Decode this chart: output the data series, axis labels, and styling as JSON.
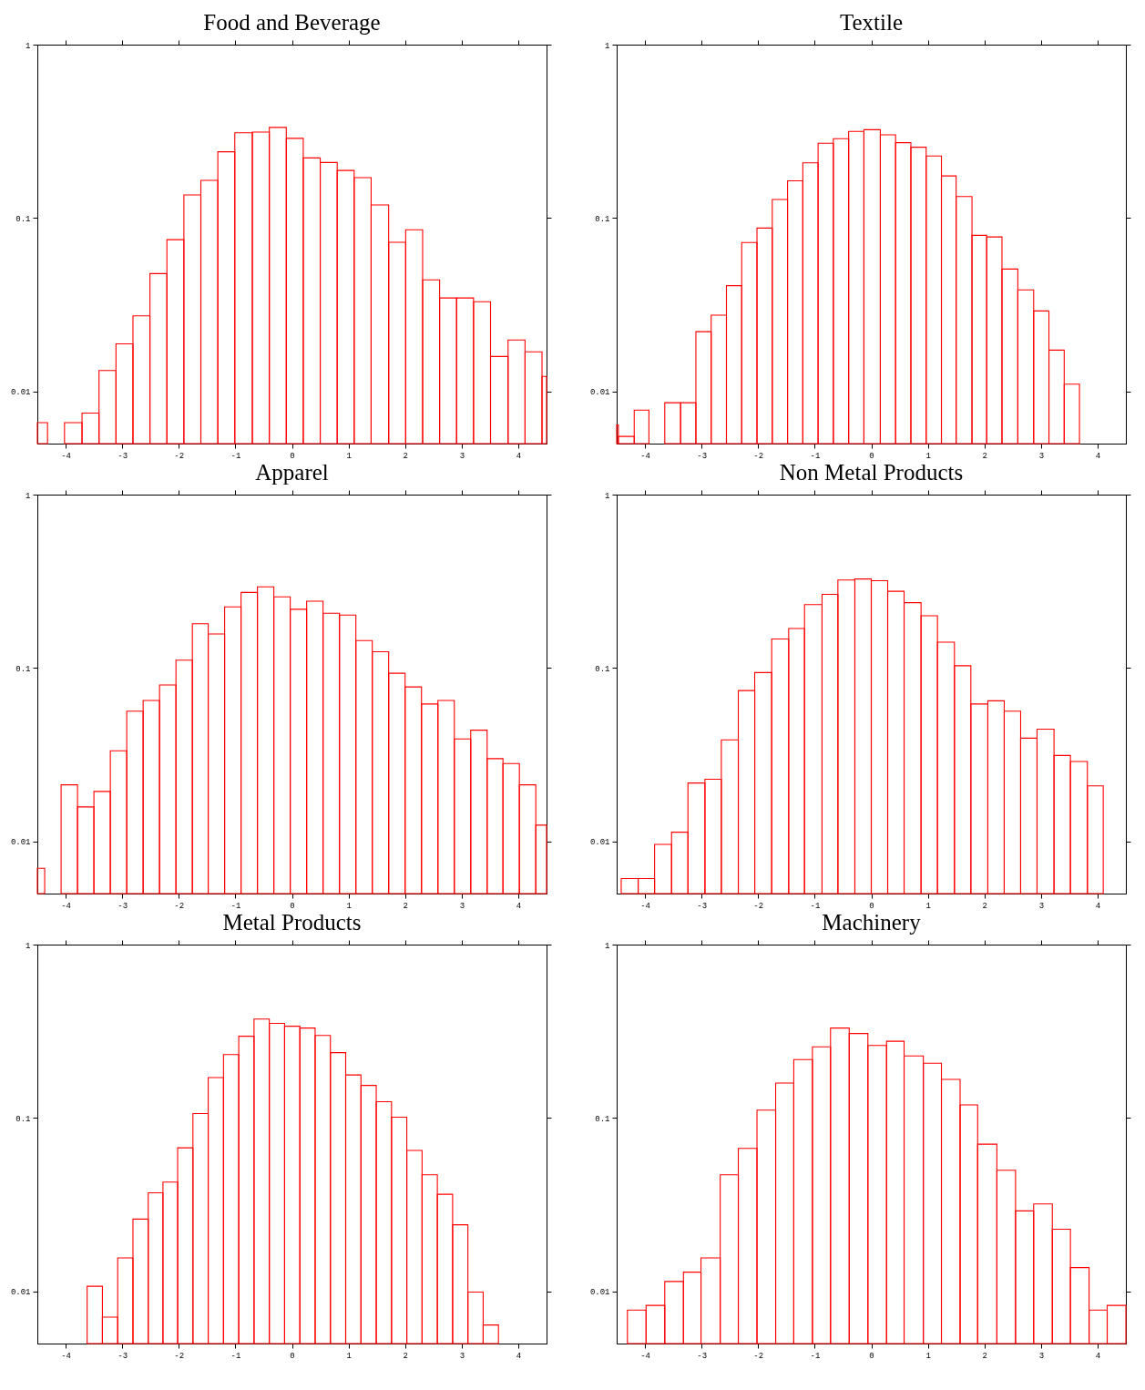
{
  "chart_data": [
    {
      "type": "histogram",
      "title": "Food and Beverage",
      "color": "#ff0000",
      "log": true,
      "xlim": [
        -4.5,
        4.5
      ],
      "xticks": [
        -4,
        -3,
        -2,
        -1,
        0,
        1,
        2,
        3,
        4
      ],
      "ylim": [
        0.005,
        1
      ],
      "yticks": [
        0.01,
        0.1,
        1
      ],
      "bins": [
        -4.5,
        -4.32,
        -4.02,
        -3.71,
        -3.41,
        -3.11,
        -2.81,
        -2.51,
        -2.21,
        -1.91,
        -1.61,
        -1.31,
        -1.01,
        -0.7,
        -0.4,
        -0.1,
        0.2,
        0.5,
        0.8,
        1.1,
        1.4,
        1.71,
        2.01,
        2.31,
        2.61,
        2.91,
        3.21,
        3.51,
        3.82,
        4.12,
        4.42,
        4.5
      ],
      "values": [
        0.0066,
        null,
        0.0066,
        0.0075,
        0.0132,
        0.0188,
        0.0273,
        0.0478,
        0.075,
        0.136,
        0.165,
        0.241,
        0.31,
        0.313,
        0.333,
        0.288,
        0.222,
        0.209,
        0.188,
        0.171,
        0.119,
        0.0724,
        0.0855,
        0.044,
        0.0346,
        0.0346,
        0.0329,
        0.0159,
        0.0198,
        0.0169,
        0.0122
      ]
    },
    {
      "type": "histogram",
      "title": "Textile",
      "color": "#ff0000",
      "log": true,
      "xlim": [
        -4.5,
        4.5
      ],
      "xticks": [
        -4,
        -3,
        -2,
        -1,
        0,
        1,
        2,
        3,
        4
      ],
      "ylim": [
        0.005,
        1
      ],
      "yticks": [
        0.01,
        0.1,
        1
      ],
      "bins": [
        -4.5,
        -4.47,
        -4.19,
        -3.93,
        -3.65,
        -3.37,
        -3.1,
        -2.83,
        -2.56,
        -2.29,
        -2.02,
        -1.75,
        -1.48,
        -1.21,
        -0.94,
        -0.67,
        -0.4,
        -0.13,
        0.16,
        0.43,
        0.7,
        0.97,
        1.24,
        1.5,
        1.78,
        2.04,
        2.31,
        2.59,
        2.87,
        3.14,
        3.41,
        3.68
      ],
      "values": [
        0.0064,
        0.0055,
        0.0078,
        null,
        0.0086,
        0.0086,
        0.0221,
        0.0275,
        0.0407,
        0.0722,
        0.0875,
        0.128,
        0.164,
        0.208,
        0.27,
        0.287,
        0.316,
        0.323,
        0.302,
        0.272,
        0.256,
        0.228,
        0.175,
        0.133,
        0.0794,
        0.0778,
        0.0508,
        0.0385,
        0.0291,
        0.0173,
        0.011
      ]
    },
    {
      "type": "histogram",
      "title": "Apparel",
      "color": "#ff0000",
      "log": true,
      "xlim": [
        -4.5,
        4.5
      ],
      "xticks": [
        -4,
        -3,
        -2,
        -1,
        0,
        1,
        2,
        3,
        4
      ],
      "ylim": [
        0.005,
        1
      ],
      "yticks": [
        0.01,
        0.1,
        1
      ],
      "bins": [
        -4.5,
        -4.37,
        -4.08,
        -3.79,
        -3.5,
        -3.21,
        -2.92,
        -2.63,
        -2.34,
        -2.05,
        -1.76,
        -1.48,
        -1.19,
        -0.9,
        -0.61,
        -0.32,
        -0.03,
        0.26,
        0.55,
        0.84,
        1.13,
        1.42,
        1.71,
        2.0,
        2.29,
        2.58,
        2.87,
        3.16,
        3.45,
        3.73,
        4.02,
        4.31,
        4.5
      ],
      "values": [
        0.007,
        null,
        0.0212,
        0.0158,
        0.0194,
        0.0333,
        0.0564,
        0.065,
        0.0798,
        0.111,
        0.18,
        0.157,
        0.225,
        0.273,
        0.294,
        0.257,
        0.218,
        0.243,
        0.207,
        0.202,
        0.144,
        0.124,
        0.0933,
        0.0778,
        0.062,
        0.065,
        0.039,
        0.0438,
        0.03,
        0.0281,
        0.0212,
        0.0124
      ]
    },
    {
      "type": "histogram",
      "title": "Non Metal Products",
      "color": "#ff0000",
      "log": true,
      "xlim": [
        -4.5,
        4.5
      ],
      "xticks": [
        -4,
        -3,
        -2,
        -1,
        0,
        1,
        2,
        3,
        4
      ],
      "ylim": [
        0.005,
        1
      ],
      "yticks": [
        0.01,
        0.1,
        1
      ],
      "bins": [
        -4.42,
        -4.12,
        -3.83,
        -3.53,
        -3.24,
        -2.94,
        -2.65,
        -2.35,
        -2.06,
        -1.76,
        -1.46,
        -1.18,
        -0.87,
        -0.59,
        -0.29,
        0.0,
        0.29,
        0.58,
        0.88,
        1.17,
        1.47,
        1.76,
        2.06,
        2.35,
        2.64,
        2.93,
        3.23,
        3.52,
        3.82,
        4.1
      ],
      "values": [
        0.0061,
        0.0061,
        0.0096,
        0.0113,
        0.0217,
        0.0228,
        0.0385,
        0.0741,
        0.0941,
        0.147,
        0.169,
        0.232,
        0.266,
        0.322,
        0.326,
        0.319,
        0.277,
        0.238,
        0.2,
        0.141,
        0.103,
        0.062,
        0.0647,
        0.0564,
        0.0394,
        0.0444,
        0.0313,
        0.0289,
        0.0209
      ]
    },
    {
      "type": "histogram",
      "title": "Metal Products",
      "color": "#ff0000",
      "log": true,
      "xlim": [
        -4.5,
        4.5
      ],
      "xticks": [
        -4,
        -3,
        -2,
        -1,
        0,
        1,
        2,
        3,
        4
      ],
      "ylim": [
        0.005,
        1
      ],
      "yticks": [
        0.01,
        0.1,
        1
      ],
      "bins": [
        -3.62,
        -3.35,
        -3.08,
        -2.81,
        -2.54,
        -2.28,
        -2.02,
        -1.75,
        -1.48,
        -1.21,
        -0.94,
        -0.67,
        -0.4,
        -0.13,
        0.14,
        0.41,
        0.68,
        0.95,
        1.22,
        1.49,
        1.76,
        2.03,
        2.3,
        2.57,
        2.84,
        3.11,
        3.38,
        3.65
      ],
      "values": [
        0.0107,
        0.0071,
        0.0156,
        0.0261,
        0.037,
        0.0427,
        0.0673,
        0.106,
        0.171,
        0.232,
        0.296,
        0.372,
        0.351,
        0.338,
        0.33,
        0.299,
        0.238,
        0.177,
        0.154,
        0.124,
        0.101,
        0.065,
        0.047,
        0.0363,
        0.0242,
        0.0099,
        0.0064
      ]
    },
    {
      "type": "histogram",
      "title": "Machinery",
      "color": "#ff0000",
      "log": true,
      "xlim": [
        -4.5,
        4.5
      ],
      "xticks": [
        -4,
        -3,
        -2,
        -1,
        0,
        1,
        2,
        3,
        4
      ],
      "ylim": [
        0.005,
        1
      ],
      "yticks": [
        0.01,
        0.1,
        1
      ],
      "bins": [
        -4.31,
        -3.98,
        -3.65,
        -3.32,
        -3.01,
        -2.67,
        -2.35,
        -2.02,
        -1.69,
        -1.37,
        -1.04,
        -0.72,
        -0.39,
        -0.06,
        0.27,
        0.58,
        0.92,
        1.24,
        1.57,
        1.88,
        2.22,
        2.55,
        2.87,
        3.2,
        3.52,
        3.85,
        4.17,
        4.5
      ],
      "values": [
        0.0078,
        0.0083,
        0.0114,
        0.0129,
        0.0156,
        0.047,
        0.0668,
        0.111,
        0.159,
        0.217,
        0.257,
        0.33,
        0.307,
        0.262,
        0.277,
        0.228,
        0.207,
        0.167,
        0.119,
        0.0706,
        0.0499,
        0.0291,
        0.0319,
        0.0228,
        0.0137,
        0.0078,
        0.0083
      ]
    }
  ]
}
